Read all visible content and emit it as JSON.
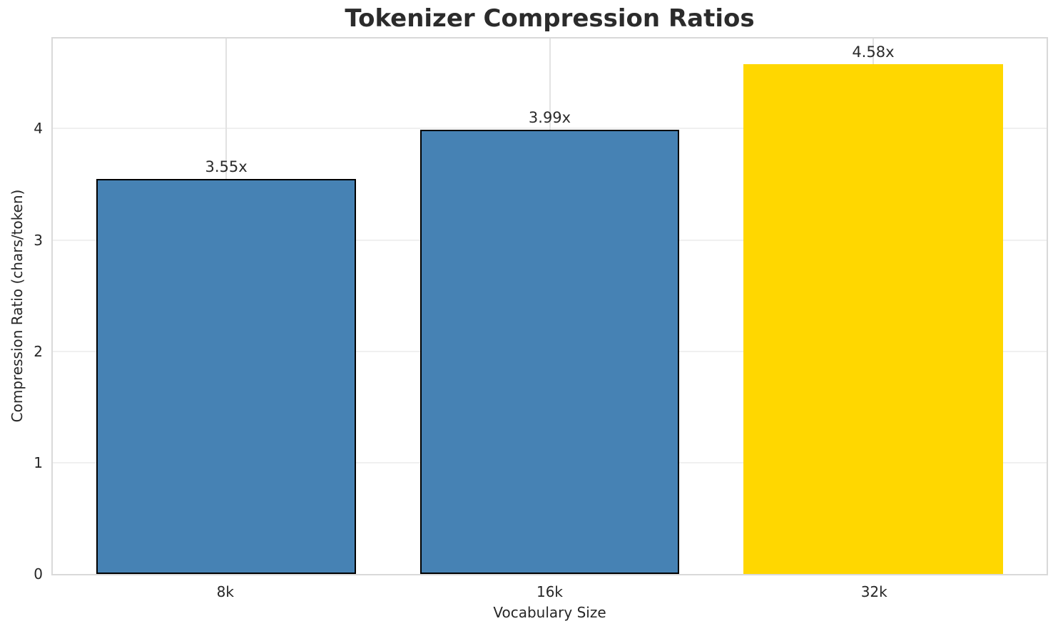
{
  "chart_data": {
    "type": "bar",
    "title": "Tokenizer Compression Ratios",
    "xlabel": "Vocabulary Size",
    "ylabel": "Compression Ratio (chars/token)",
    "categories": [
      "8k",
      "16k",
      "32k"
    ],
    "values": [
      3.55,
      3.99,
      4.58
    ],
    "bar_labels": [
      "3.55x",
      "3.99x",
      "4.58x"
    ],
    "bar_colors": [
      "#4682b4",
      "#4682b4",
      "#ffd700"
    ],
    "bar_edge_colors": [
      "#000000",
      "#000000",
      "none"
    ],
    "yticks": [
      0,
      1,
      2,
      3,
      4
    ],
    "ylim": [
      0,
      4.81
    ],
    "grid": true,
    "legend": "none"
  },
  "colors": {
    "bar_primary": "#4682b4",
    "bar_highlight": "#ffd700",
    "bar_edge": "#000000",
    "grid_h": "#f0f0f0",
    "grid_v": "#e2e2e2",
    "spine": "#d9d9d9",
    "text": "#262626",
    "title": "#2b2b2b",
    "background": "#ffffff"
  }
}
